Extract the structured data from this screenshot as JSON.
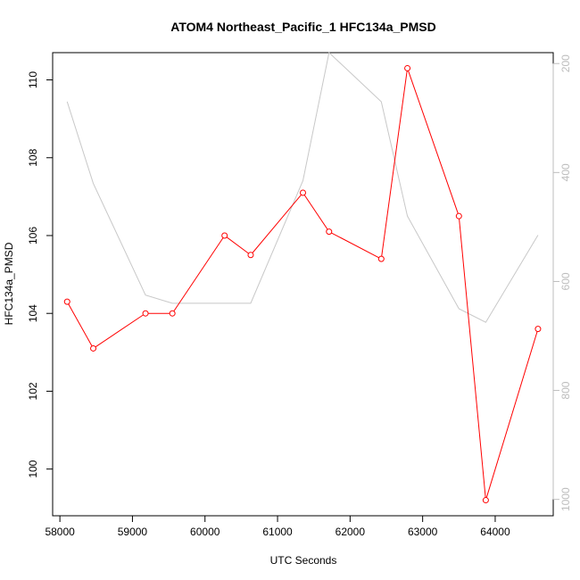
{
  "chart_data": {
    "type": "line",
    "title": "ATOM4 Northeast_Pacific_1 HFC134a_PMSD",
    "xlabel": "UTC Seconds",
    "ylabel": "HFC134a_PMSD",
    "xlim": [
      57900,
      64800
    ],
    "ylim": [
      98.8,
      110.7
    ],
    "y2lim": [
      1030,
      180
    ],
    "y2_reversed": true,
    "x_ticks": [
      58000,
      59000,
      60000,
      61000,
      62000,
      63000,
      64000
    ],
    "y_ticks": [
      100,
      102,
      104,
      106,
      108,
      110
    ],
    "y2_ticks": [
      200,
      400,
      600,
      800,
      1000
    ],
    "colors": {
      "primary": "#ff0000",
      "secondary": "#c8c8c8"
    },
    "series": [
      {
        "axis": "left",
        "x": [
          58100,
          58460,
          59180,
          59550,
          60270,
          60630,
          61350,
          61710,
          62430,
          62790,
          63500,
          63870,
          64590
        ],
        "y": [
          104.3,
          103.1,
          104.0,
          104.0,
          106.0,
          105.5,
          107.1,
          106.1,
          105.4,
          110.3,
          106.5,
          99.2,
          103.6
        ]
      },
      {
        "axis": "right",
        "x": [
          58100,
          58460,
          59180,
          59550,
          60270,
          60630,
          61350,
          61710,
          62430,
          62790,
          63500,
          63870,
          64590
        ],
        "y": [
          270,
          420,
          625,
          640,
          640,
          640,
          415,
          180,
          270,
          480,
          650,
          675,
          515
        ]
      }
    ]
  }
}
